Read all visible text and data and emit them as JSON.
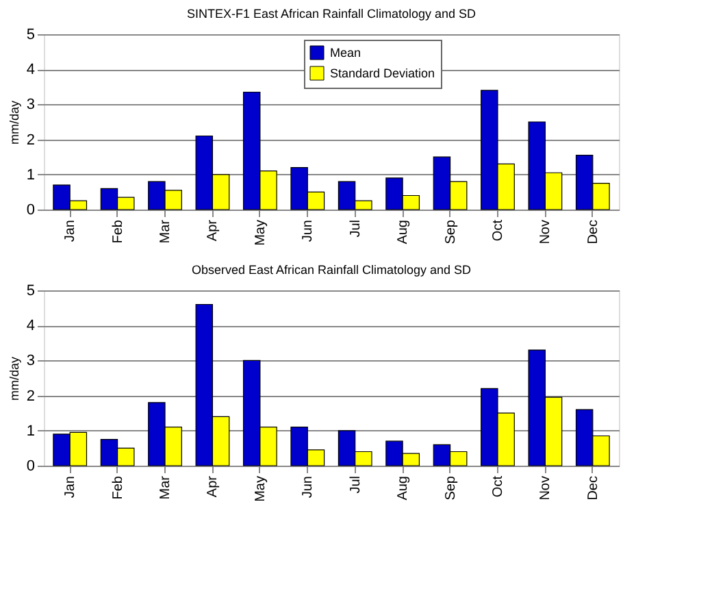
{
  "chart_data": [
    {
      "type": "bar",
      "title": "SINTEX-F1 East African Rainfall Climatology and SD",
      "ylabel": "mm/day",
      "categories": [
        "Jan",
        "Feb",
        "Mar",
        "Apr",
        "May",
        "Jun",
        "Jul",
        "Aug",
        "Sep",
        "Oct",
        "Nov",
        "Dec"
      ],
      "series": [
        {
          "name": "Mean",
          "color": "#0000cc",
          "values": [
            0.7,
            0.6,
            0.8,
            2.1,
            3.35,
            1.2,
            0.8,
            0.9,
            1.5,
            3.4,
            2.5,
            1.55
          ]
        },
        {
          "name": "Standard Deviation",
          "color": "#ffff00",
          "values": [
            0.25,
            0.35,
            0.55,
            1.0,
            1.1,
            0.5,
            0.25,
            0.4,
            0.8,
            1.3,
            1.05,
            0.75
          ]
        }
      ],
      "ylim": [
        0,
        5
      ],
      "yticks": [
        0,
        1,
        2,
        3,
        4,
        5
      ],
      "grid": "y",
      "legend": "top right"
    },
    {
      "type": "bar",
      "title": "Observed East African Rainfall Climatology and SD",
      "ylabel": "mm/day",
      "categories": [
        "Jan",
        "Feb",
        "Mar",
        "Apr",
        "May",
        "Jun",
        "Jul",
        "Aug",
        "Sep",
        "Oct",
        "Nov",
        "Dec"
      ],
      "series": [
        {
          "color": "#0000cc",
          "values": [
            0.9,
            0.75,
            1.8,
            4.6,
            3.0,
            1.1,
            1.0,
            0.7,
            0.6,
            2.2,
            3.3,
            1.6
          ]
        },
        {
          "color": "#ffff00",
          "values": [
            0.95,
            0.5,
            1.1,
            1.4,
            1.1,
            0.45,
            0.4,
            0.35,
            0.4,
            1.5,
            1.95,
            0.85
          ]
        }
      ],
      "ylim": [
        0,
        5
      ],
      "yticks": [
        0,
        1,
        2,
        3,
        4,
        5
      ],
      "grid": "y",
      "legend": false
    }
  ]
}
